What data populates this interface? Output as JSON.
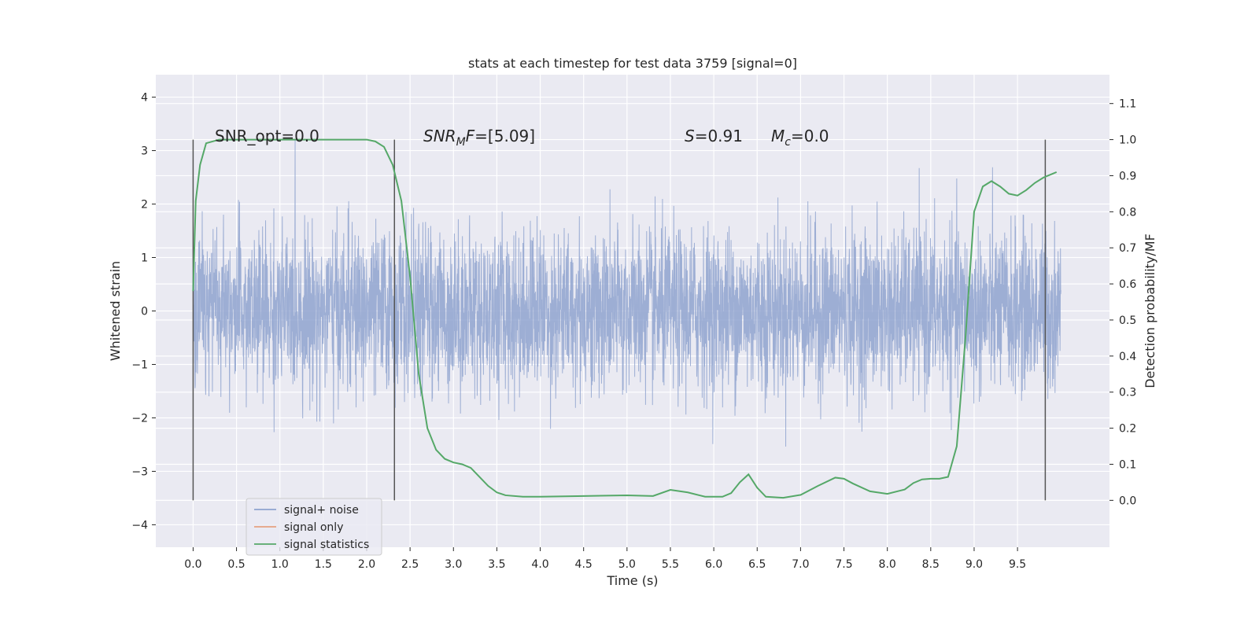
{
  "chart_data": {
    "type": "line",
    "title": "stats at each timestep for test data 3759 [signal=0]",
    "xlabel": "Time (s)",
    "ylabel": "Whitened strain",
    "ylabel_right": "Detection probability/MF",
    "xlim": [
      -0.43,
      10.56
    ],
    "ylim": [
      -4.42,
      4.42
    ],
    "ylim_right": [
      -0.13,
      1.18
    ],
    "x_ticks": [
      "0.0",
      "0.5",
      "1.0",
      "1.5",
      "2.0",
      "2.5",
      "3.0",
      "3.5",
      "4.0",
      "4.5",
      "5.0",
      "5.5",
      "6.0",
      "6.5",
      "7.0",
      "7.5",
      "8.0",
      "8.5",
      "9.0",
      "9.5"
    ],
    "y_ticks": [
      "4",
      "3",
      "2",
      "1",
      "0",
      "−1",
      "−2",
      "−3",
      "−4"
    ],
    "y_ticks_right": [
      "1.1",
      "1.0",
      "0.9",
      "0.8",
      "0.7",
      "0.6",
      "0.5",
      "0.4",
      "0.3",
      "0.2",
      "0.1",
      "0.0"
    ],
    "grid": true,
    "legend_position": "lower-left",
    "annotations": {
      "snr_opt": "SNR_opt=0.0",
      "snr_mf_name": "SNR",
      "snr_mf_sub": "M",
      "snr_mf_rest": "F=[5.09]",
      "s_name": "S",
      "s_rest": "=0.91",
      "mc_name": "M",
      "mc_sub": "c",
      "mc_rest": "=0.0"
    },
    "vertical_markers_x": [
      0.0,
      2.32,
      9.82
    ],
    "series": [
      {
        "name": "signal+ noise",
        "color": "#8fa3cf",
        "axis": "left",
        "style": "dense noise, approx. Gaussian, std 0.75, t 0.0–10.0 s",
        "time_range": [
          0.0,
          10.0
        ],
        "envelope_std": 0.75
      },
      {
        "name": "signal only",
        "color": "#e6a081",
        "axis": "left",
        "values": []
      },
      {
        "name": "signal statistics",
        "color": "#55a868",
        "axis": "right",
        "x": [
          0.0,
          0.03,
          0.08,
          0.15,
          0.3,
          0.6,
          1.0,
          1.5,
          1.8,
          2.0,
          2.1,
          2.2,
          2.3,
          2.4,
          2.5,
          2.6,
          2.7,
          2.8,
          2.9,
          3.0,
          3.1,
          3.2,
          3.3,
          3.4,
          3.5,
          3.6,
          3.8,
          4.0,
          4.5,
          5.0,
          5.3,
          5.5,
          5.7,
          5.9,
          6.1,
          6.2,
          6.3,
          6.4,
          6.5,
          6.6,
          6.8,
          7.0,
          7.2,
          7.4,
          7.5,
          7.6,
          7.8,
          8.0,
          8.2,
          8.3,
          8.4,
          8.5,
          8.6,
          8.7,
          8.8,
          8.9,
          9.0,
          9.1,
          9.2,
          9.3,
          9.4,
          9.5,
          9.6,
          9.7,
          9.8,
          9.9,
          9.95
        ],
        "values": [
          0.58,
          0.83,
          0.93,
          0.99,
          1.0,
          1.0,
          1.0,
          1.0,
          1.0,
          1.0,
          0.995,
          0.98,
          0.93,
          0.83,
          0.62,
          0.35,
          0.2,
          0.14,
          0.115,
          0.105,
          0.1,
          0.09,
          0.065,
          0.04,
          0.022,
          0.014,
          0.01,
          0.01,
          0.012,
          0.014,
          0.012,
          0.029,
          0.022,
          0.01,
          0.01,
          0.02,
          0.05,
          0.072,
          0.035,
          0.01,
          0.007,
          0.015,
          0.04,
          0.063,
          0.06,
          0.047,
          0.025,
          0.018,
          0.03,
          0.048,
          0.058,
          0.06,
          0.06,
          0.065,
          0.15,
          0.45,
          0.8,
          0.87,
          0.885,
          0.87,
          0.85,
          0.845,
          0.86,
          0.88,
          0.895,
          0.905,
          0.91
        ]
      }
    ]
  }
}
